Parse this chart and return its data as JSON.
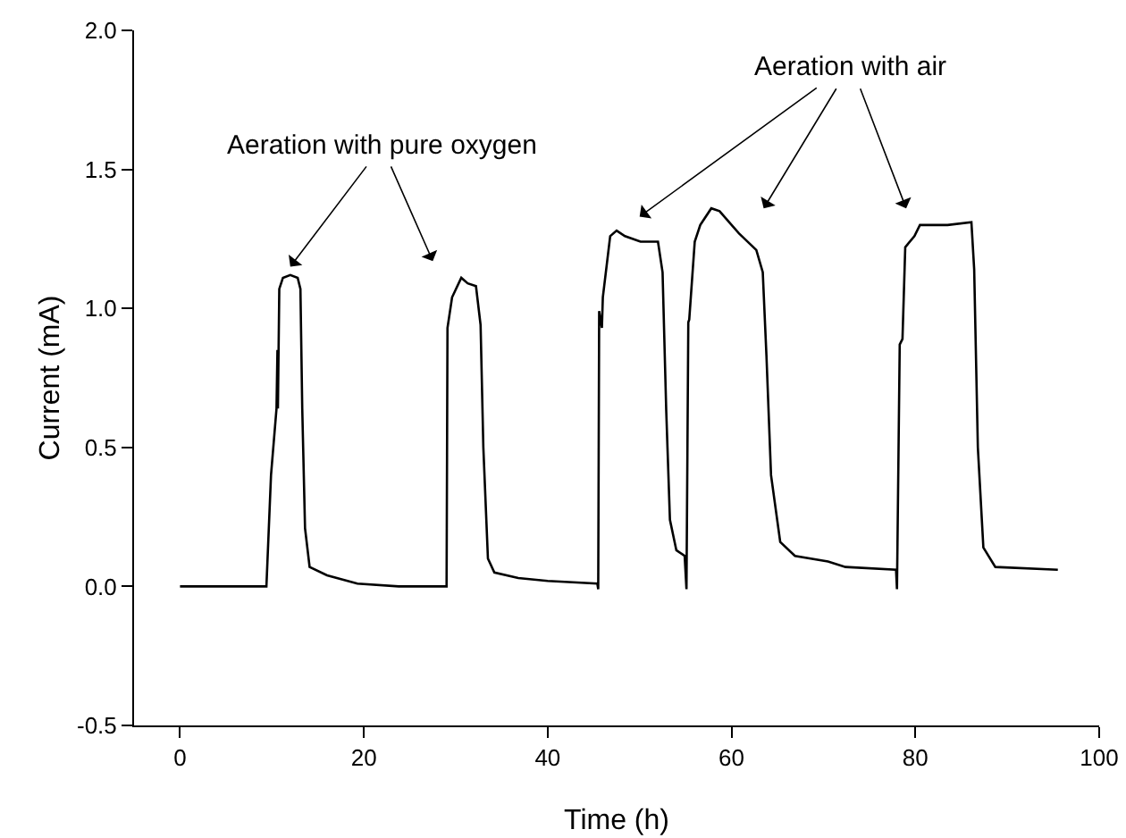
{
  "chart_data": {
    "type": "line",
    "xlabel": "Time (h)",
    "ylabel": "Current (mA)",
    "annotations": [
      "Aeration with pure oxygen",
      "Aeration with air"
    ],
    "xlim": [
      -5,
      100
    ],
    "xticks": [
      0,
      20,
      40,
      60,
      80,
      100
    ],
    "ylim": [
      -0.5,
      2.0
    ],
    "yticks": [
      {
        "value": -0.5,
        "label": "-0.5"
      },
      {
        "value": 0,
        "label": "0.0"
      },
      {
        "value": 0.5,
        "label": "0.5"
      },
      {
        "value": 1.0,
        "label": "1.0"
      },
      {
        "value": 1.5,
        "label": "1.5"
      },
      {
        "value": 2.0,
        "label": "2.0"
      }
    ],
    "grid": false,
    "marker": "none",
    "line_style": "solid",
    "series": [
      {
        "color": "#000000",
        "x": [
          0,
          9.4,
          9.9,
          10.5,
          10.6,
          10.65,
          10.8,
          11.2,
          12.0,
          12.8,
          13.1,
          13.3,
          13.6,
          14.1,
          16.0,
          19.3,
          23.8,
          29.0,
          29.1,
          29.6,
          30.6,
          31.3,
          32.2,
          32.7,
          33.0,
          33.5,
          34.2,
          36.8,
          40.0,
          45.4,
          45.5,
          45.6,
          45.9,
          46.0,
          46.8,
          47.5,
          48.4,
          50.1,
          52.0,
          52.5,
          52.9,
          53.3,
          54.0,
          54.9,
          55.1,
          55.3,
          55.4,
          56.0,
          56.6,
          57.8,
          58.7,
          60.8,
          62.7,
          63.4,
          63.8,
          64.3,
          65.3,
          66.9,
          70.5,
          72.4,
          77.9,
          78.0,
          78.3,
          78.6,
          78.9,
          79.9,
          80.5,
          83.5,
          86.1,
          86.4,
          86.8,
          87.4,
          88.7,
          95.5
        ],
        "values": [
          0,
          0,
          0.4,
          0.64,
          0.85,
          0.64,
          1.07,
          1.11,
          1.12,
          1.11,
          1.07,
          0.64,
          0.21,
          0.07,
          0.04,
          0.01,
          0,
          0,
          0.93,
          1.04,
          1.11,
          1.09,
          1.08,
          0.94,
          0.5,
          0.1,
          0.05,
          0.03,
          0.02,
          0.01,
          -0.01,
          0.99,
          0.93,
          1.04,
          1.26,
          1.28,
          1.26,
          1.24,
          1.24,
          1.13,
          0.63,
          0.24,
          0.13,
          0.11,
          -0.01,
          0.95,
          0.96,
          1.24,
          1.3,
          1.36,
          1.35,
          1.27,
          1.21,
          1.13,
          0.83,
          0.4,
          0.16,
          0.11,
          0.09,
          0.07,
          0.06,
          -0.01,
          0.87,
          0.89,
          1.22,
          1.26,
          1.3,
          1.3,
          1.31,
          1.14,
          0.5,
          0.14,
          0.07,
          0.06
        ]
      }
    ]
  }
}
